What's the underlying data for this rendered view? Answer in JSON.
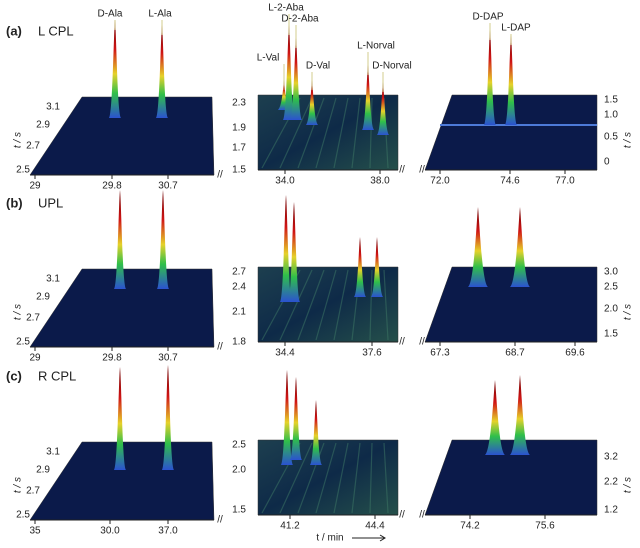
{
  "figure": {
    "time_axis_label": "t / s",
    "x_axis_label": "t / min",
    "rows": [
      {
        "label": "(a)",
        "name": "L CPL",
        "panels": [
          {
            "xticks": [
              "29",
              "29.8",
              "30.7"
            ],
            "yticks": [
              "3.1",
              "2.9",
              "2.7",
              "2.5"
            ],
            "peak_labels": [
              "D-Ala",
              "L-Ala"
            ]
          },
          {
            "xticks": [
              "34.0",
              "38.0"
            ],
            "yticks": [
              "2.3",
              "1.9",
              "1.7",
              "1.5"
            ],
            "peak_labels": [
              "L-Val",
              "L-2-Aba",
              "D-2-Aba",
              "D-Val",
              "L-Norval",
              "D-Norval"
            ]
          },
          {
            "xticks": [
              "72.0",
              "74.6",
              "77.0"
            ],
            "yticks": [
              "1.5",
              "1.0",
              "0.5",
              "0"
            ],
            "peak_labels": [
              "D-DAP",
              "L-DAP"
            ]
          }
        ]
      },
      {
        "label": "(b)",
        "name": "UPL",
        "panels": [
          {
            "xticks": [
              "29",
              "29.8",
              "30.7"
            ],
            "yticks": [
              "3.1",
              "2.9",
              "2.7",
              "2.5"
            ]
          },
          {
            "xticks": [
              "34.4",
              "37.6"
            ],
            "yticks": [
              "2.7",
              "2.4",
              "2.1",
              "1.8"
            ]
          },
          {
            "xticks": [
              "67.3",
              "68.7",
              "69.6"
            ],
            "yticks": [
              "3.0",
              "2.5",
              "2.0",
              "1.5"
            ]
          }
        ]
      },
      {
        "label": "(c)",
        "name": "R CPL",
        "panels": [
          {
            "xticks": [
              "35",
              "30.0",
              "37.0"
            ],
            "yticks": [
              "3.1",
              "2.9",
              "2.7",
              "2.5"
            ]
          },
          {
            "xticks": [
              "41.2",
              "44.4"
            ],
            "yticks": [
              "2.5",
              "2.0",
              "1.5"
            ]
          },
          {
            "xticks": [
              "74.2",
              "75.6"
            ],
            "yticks": [
              "3.2",
              "2.2",
              "1.2"
            ]
          }
        ]
      }
    ]
  }
}
